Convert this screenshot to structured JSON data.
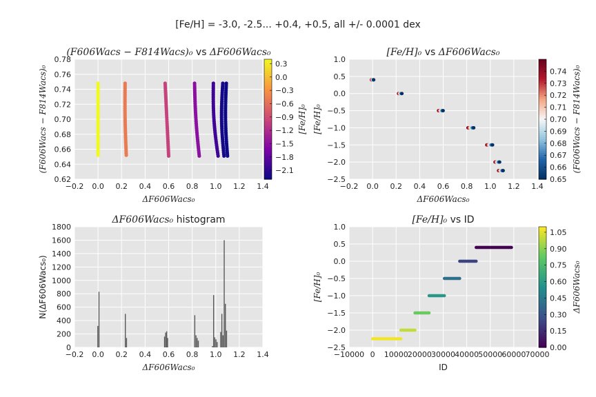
{
  "suptitle": "[Fe/H] = -3.0, -2.5... +0.4, +0.5, all +/- 0.0001 dex",
  "colors": {
    "background": "#e5e5e5",
    "grid": "#ffffff",
    "hist_bar": "#555555",
    "viridis": [
      "#440154",
      "#3b528b",
      "#21918c",
      "#5ec962",
      "#fde725"
    ],
    "plasma": [
      "#0d0887",
      "#7e03a8",
      "#cc4778",
      "#f89540",
      "#f0f921"
    ],
    "rdbu": [
      "#053061",
      "#2166ac",
      "#92c5de",
      "#f7f7f7",
      "#f4a582",
      "#b2182b",
      "#67001f"
    ]
  },
  "chart_data": [
    {
      "id": "p1",
      "type": "scatter",
      "title": "(F606Wacs − F814Wacs)₀ vs ΔF606Wacs₀",
      "title_math": "(F606Wacs − F814Wacs)₀",
      "title_text": " vs ",
      "title_math2": "ΔF606Wacs₀",
      "xlabel": "ΔF606Wacs₀",
      "ylabel": "(F606Wacs − F814Wacs)₀",
      "xlim": [
        -0.2,
        1.4
      ],
      "ylim": [
        0.62,
        0.78
      ],
      "xticks": [
        -0.2,
        0.0,
        0.2,
        0.4,
        0.6,
        0.8,
        1.0,
        1.2,
        1.4
      ],
      "xtick_labels": [
        "−0.2",
        "0.0",
        "0.2",
        "0.4",
        "0.6",
        "0.8",
        "1.0",
        "1.2",
        "1.4"
      ],
      "yticks": [
        0.62,
        0.64,
        0.66,
        0.68,
        0.7,
        0.72,
        0.74,
        0.76,
        0.78
      ],
      "ytick_labels": [
        "0.62",
        "0.64",
        "0.66",
        "0.68",
        "0.70",
        "0.72",
        "0.74",
        "0.76",
        "0.78"
      ],
      "colormap": "plasma",
      "colorbar": {
        "label": "[Fe/H]₀",
        "range": [
          -2.3,
          0.4
        ],
        "ticks": [
          0.3,
          0.0,
          -0.3,
          -0.6,
          -0.9,
          -1.2,
          -1.5,
          -1.8,
          -2.1
        ],
        "tick_labels": [
          "0.3",
          "0.0",
          "−0.3",
          "−0.6",
          "−0.9",
          "−1.2",
          "−1.5",
          "−1.8",
          "−2.1"
        ]
      },
      "grid": true,
      "tracks": [
        {
          "feh": 0.4,
          "x_top": 0.0,
          "x_bottom": 0.0,
          "bow": 0.0,
          "y_range": [
            0.652,
            0.748
          ]
        },
        {
          "feh": -0.5,
          "x_top": 0.23,
          "x_bottom": 0.24,
          "bow": -0.005,
          "y_range": [
            0.652,
            0.748
          ]
        },
        {
          "feh": -1.0,
          "x_top": 0.57,
          "x_bottom": 0.6,
          "bow": 0.0,
          "y_range": [
            0.651,
            0.748
          ]
        },
        {
          "feh": -1.5,
          "x_top": 0.82,
          "x_bottom": 0.86,
          "bow": -0.008,
          "y_range": [
            0.651,
            0.748
          ]
        },
        {
          "feh": -2.0,
          "x_top": 0.98,
          "x_bottom": 1.02,
          "bow": -0.015,
          "y_range": [
            0.651,
            0.748
          ]
        },
        {
          "feh": -2.25,
          "x_top": 1.06,
          "x_bottom": 1.07,
          "bow": -0.015,
          "y_range": [
            0.651,
            0.748
          ]
        },
        {
          "feh": -2.3,
          "x_top": 1.09,
          "x_bottom": 1.1,
          "bow": -0.012,
          "y_range": [
            0.651,
            0.748
          ]
        }
      ]
    },
    {
      "id": "p2",
      "type": "scatter",
      "title": "[Fe/H]₀ vs ΔF606Wacs₀",
      "title_math": "[Fe/H]₀",
      "title_text": " vs ",
      "title_math2": "ΔF606Wacs₀",
      "xlabel": "ΔF606Wacs₀",
      "ylabel": "[Fe/H]₀",
      "xlim": [
        -0.2,
        1.4
      ],
      "ylim": [
        -2.5,
        1.0
      ],
      "xticks": [
        -0.2,
        0.0,
        0.2,
        0.4,
        0.6,
        0.8,
        1.0,
        1.2,
        1.4
      ],
      "xtick_labels": [
        "−0.2",
        "0.0",
        "0.2",
        "0.4",
        "0.6",
        "0.8",
        "1.0",
        "1.2",
        "1.4"
      ],
      "yticks": [
        -2.5,
        -2.0,
        -1.5,
        -1.0,
        -0.5,
        0.0,
        0.5,
        1.0
      ],
      "ytick_labels": [
        "−2.5",
        "−2.0",
        "−1.5",
        "−1.0",
        "−0.5",
        "0.0",
        "0.5",
        "1.0"
      ],
      "colormap": "rdbu",
      "colorbar": {
        "label": "(F606Wacs − F814Wacs)₀",
        "range": [
          0.65,
          0.75
        ],
        "ticks": [
          0.74,
          0.73,
          0.72,
          0.71,
          0.7,
          0.69,
          0.68,
          0.67,
          0.66,
          0.65
        ],
        "tick_labels": [
          "0.74",
          "0.73",
          "0.72",
          "0.71",
          "0.70",
          "0.69",
          "0.68",
          "0.67",
          "0.66",
          "0.65"
        ]
      },
      "grid": true,
      "groups": [
        {
          "feh": 0.4,
          "x_range": [
            -0.01,
            0.01
          ]
        },
        {
          "feh": 0.0,
          "x_range": [
            0.22,
            0.25
          ]
        },
        {
          "feh": -0.5,
          "x_range": [
            0.56,
            0.6
          ]
        },
        {
          "feh": -1.0,
          "x_range": [
            0.81,
            0.86
          ]
        },
        {
          "feh": -1.5,
          "x_range": [
            0.97,
            1.02
          ]
        },
        {
          "feh": -2.0,
          "x_range": [
            1.04,
            1.08
          ]
        },
        {
          "feh": -2.25,
          "x_range": [
            1.07,
            1.11
          ]
        }
      ]
    },
    {
      "id": "p3",
      "type": "bar",
      "title": "ΔF606Wacs₀ histogram",
      "title_math": "ΔF606Wacs₀",
      "title_text": " histogram",
      "title_math2": "",
      "xlabel": "ΔF606Wacs₀",
      "ylabel": "N(ΔF606Wacs₀)",
      "xlim": [
        -0.2,
        1.4
      ],
      "ylim": [
        0,
        1800
      ],
      "xticks": [
        -0.2,
        0.0,
        0.2,
        0.4,
        0.6,
        0.8,
        1.0,
        1.2,
        1.4
      ],
      "xtick_labels": [
        "−0.2",
        "0.0",
        "0.2",
        "0.4",
        "0.6",
        "0.8",
        "1.0",
        "1.2",
        "1.4"
      ],
      "yticks": [
        0,
        200,
        400,
        600,
        800,
        1000,
        1200,
        1400,
        1600,
        1800
      ],
      "ytick_labels": [
        "0",
        "200",
        "400",
        "600",
        "800",
        "1000",
        "1200",
        "1400",
        "1600",
        "1800"
      ],
      "grid": true,
      "bar_width": 0.008,
      "bars": [
        {
          "x": -0.002,
          "y": 320
        },
        {
          "x": 0.008,
          "y": 830
        },
        {
          "x": 0.232,
          "y": 500
        },
        {
          "x": 0.242,
          "y": 140
        },
        {
          "x": 0.565,
          "y": 160
        },
        {
          "x": 0.574,
          "y": 220
        },
        {
          "x": 0.583,
          "y": 240
        },
        {
          "x": 0.592,
          "y": 140
        },
        {
          "x": 0.822,
          "y": 480
        },
        {
          "x": 0.832,
          "y": 180
        },
        {
          "x": 0.842,
          "y": 140
        },
        {
          "x": 0.852,
          "y": 100
        },
        {
          "x": 0.972,
          "y": 20
        },
        {
          "x": 0.982,
          "y": 780
        },
        {
          "x": 0.992,
          "y": 150
        },
        {
          "x": 1.002,
          "y": 120
        },
        {
          "x": 1.012,
          "y": 80
        },
        {
          "x": 1.042,
          "y": 230
        },
        {
          "x": 1.052,
          "y": 500
        },
        {
          "x": 1.062,
          "y": 180
        },
        {
          "x": 1.072,
          "y": 1600
        },
        {
          "x": 1.082,
          "y": 650
        },
        {
          "x": 1.092,
          "y": 250
        }
      ]
    },
    {
      "id": "p4",
      "type": "scatter",
      "title": "[Fe/H]₀ vs ID",
      "title_math": "[Fe/H]₀",
      "title_text": " vs ID",
      "title_math2": "",
      "xlabel": "ID",
      "ylabel": "[Fe/H]₀",
      "xlim": [
        -10000,
        70000
      ],
      "ylim": [
        -2.5,
        1.0
      ],
      "xticks": [
        -10000,
        0,
        10000,
        20000,
        30000,
        40000,
        50000,
        60000,
        70000
      ],
      "xtick_labels": [
        "−10000",
        "0",
        "10000",
        "20000",
        "30000",
        "40000",
        "50000",
        "60000",
        "70000"
      ],
      "yticks": [
        -2.5,
        -2.0,
        -1.5,
        -1.0,
        -0.5,
        0.0,
        0.5,
        1.0
      ],
      "ytick_labels": [
        "−2.5",
        "−2.0",
        "−1.5",
        "−1.0",
        "−0.5",
        "0.0",
        "0.5",
        "1.0"
      ],
      "colormap": "viridis",
      "colorbar": {
        "label": "ΔF606Wacs₀",
        "range": [
          0.0,
          1.1
        ],
        "ticks": [
          1.05,
          0.9,
          0.75,
          0.6,
          0.45,
          0.3,
          0.15,
          0.0
        ],
        "tick_labels": [
          "1.05",
          "0.90",
          "0.75",
          "0.60",
          "0.45",
          "0.30",
          "0.15",
          "0.00"
        ]
      },
      "grid": true,
      "segments": [
        {
          "feh": -2.25,
          "id_range": [
            0,
            12000
          ],
          "c": 1.08
        },
        {
          "feh": -2.0,
          "id_range": [
            12000,
            18000
          ],
          "c": 1.0
        },
        {
          "feh": -1.5,
          "id_range": [
            18000,
            24000
          ],
          "c": 0.84
        },
        {
          "feh": -1.0,
          "id_range": [
            24000,
            30500
          ],
          "c": 0.58
        },
        {
          "feh": -0.5,
          "id_range": [
            30500,
            37000
          ],
          "c": 0.4
        },
        {
          "feh": 0.0,
          "id_range": [
            37000,
            44000
          ],
          "c": 0.23
        },
        {
          "feh": 0.4,
          "id_range": [
            44000,
            59000
          ],
          "c": 0.0
        }
      ]
    }
  ]
}
